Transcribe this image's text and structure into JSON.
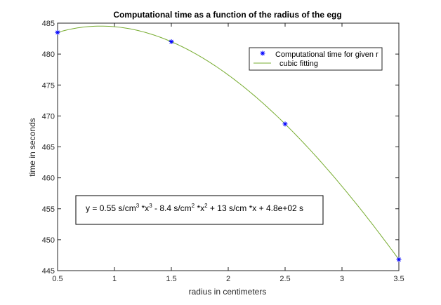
{
  "chart_data": {
    "type": "scatter",
    "title": "Computational time as a function of the radius of the egg",
    "xlabel": "radius in centimeters",
    "ylabel": "time in seconds",
    "xlim": [
      0.5,
      3.5
    ],
    "ylim": [
      445,
      485
    ],
    "xticks": [
      "0.5",
      "1",
      "1.5",
      "2",
      "2.5",
      "3",
      "3.5"
    ],
    "yticks": [
      "445",
      "450",
      "455",
      "460",
      "465",
      "470",
      "475",
      "480",
      "485"
    ],
    "grid": false,
    "legend_position": "top-right",
    "series": [
      {
        "name": "Computational time for given r",
        "kind": "markers",
        "marker": "asterisk",
        "color": "#0000ff",
        "x": [
          0.5,
          1.5,
          2.5,
          3.5
        ],
        "y": [
          483.5,
          482.0,
          468.7,
          446.8
        ]
      },
      {
        "name": "cubic fitting",
        "kind": "line",
        "color": "#77ac30",
        "coefficients": [
          0.55,
          -8.4,
          13,
          480
        ],
        "curve_y_at_data_x": [
          483.5,
          482.0,
          468.7,
          446.8
        ]
      }
    ],
    "annotation": {
      "coef3": "0.55",
      "coef2": "8.4",
      "coef1": "13",
      "coef0": "4.8e+02"
    },
    "colors": {
      "axes": "#262626",
      "markers": "#0000ff",
      "fit_line": "#77ac30"
    }
  }
}
